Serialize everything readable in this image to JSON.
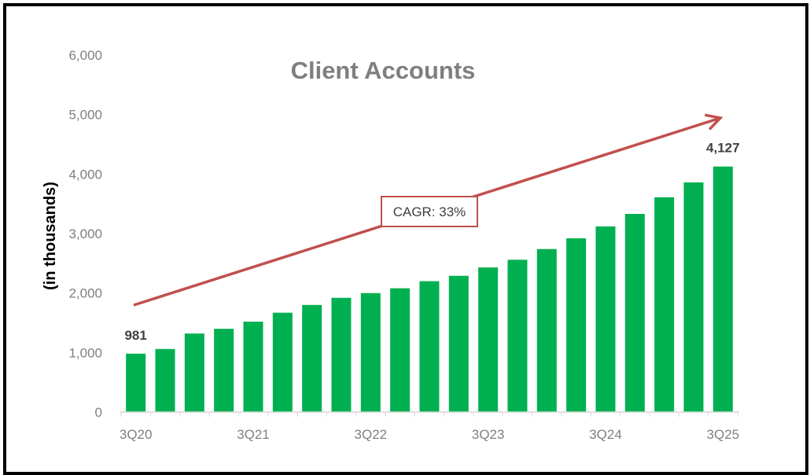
{
  "chart_data": {
    "type": "bar",
    "title": "Client Accounts",
    "ylabel": "(in thousands)",
    "xlabel": "",
    "ylim": [
      0,
      6000
    ],
    "yticks": [
      "0",
      "1,000",
      "2,000",
      "3,000",
      "4,000",
      "5,000",
      "6,000"
    ],
    "xtick_labels": [
      "3Q20",
      "3Q21",
      "3Q22",
      "3Q23",
      "3Q24",
      "3Q25"
    ],
    "categories": [
      "3Q20",
      "4Q20",
      "1Q21",
      "2Q21",
      "3Q21",
      "4Q21",
      "1Q22",
      "2Q22",
      "3Q22",
      "4Q22",
      "1Q23",
      "2Q23",
      "3Q23",
      "4Q23",
      "1Q24",
      "2Q24",
      "3Q24",
      "4Q24",
      "1Q25",
      "2Q25",
      "3Q25"
    ],
    "values": [
      981,
      1060,
      1320,
      1400,
      1520,
      1670,
      1800,
      1920,
      2000,
      2080,
      2200,
      2290,
      2430,
      2560,
      2740,
      2920,
      3120,
      3330,
      3610,
      3860,
      4127
    ],
    "data_labels": [
      {
        "category": "3Q20",
        "text": "981"
      },
      {
        "category": "3Q25",
        "text": "4,127"
      }
    ],
    "annotation": {
      "text": "CAGR: 33%",
      "type": "arrow"
    },
    "grid": false,
    "legend": "none",
    "colors": {
      "bar": "#00b050",
      "arrow": "#c0504d",
      "title": "#7f7f7f",
      "axis_text": "#7f7f7f"
    }
  }
}
